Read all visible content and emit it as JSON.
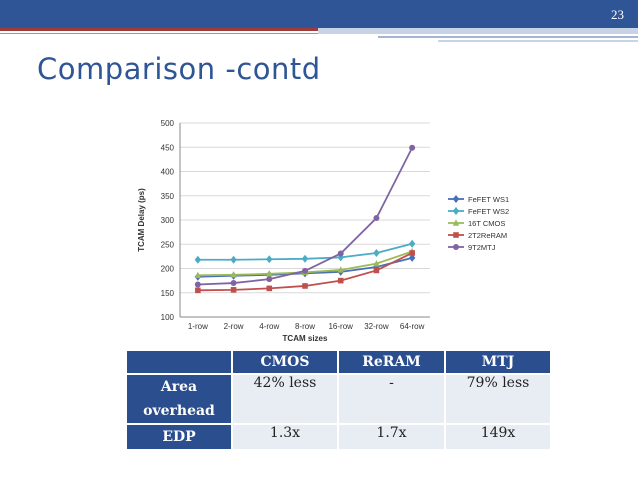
{
  "slide": {
    "page_number": "23",
    "title": "Comparison -contd"
  },
  "chart_data": {
    "type": "line",
    "title": "",
    "xlabel": "TCAM sizes",
    "ylabel": "TCAM Delay (ps)",
    "categories": [
      "1-row",
      "2-row",
      "4-row",
      "8-row",
      "16-row",
      "32-row",
      "64-row"
    ],
    "ylim": [
      100,
      500
    ],
    "yticks": [
      100,
      150,
      200,
      250,
      300,
      350,
      400,
      450,
      500
    ],
    "grid": true,
    "legend_position": "right",
    "series": [
      {
        "name": "FeFET WS1",
        "color": "#4a6fb5",
        "marker": "diamond",
        "values": [
          183,
          185,
          187,
          190,
          193,
          203,
          222
        ]
      },
      {
        "name": "FeFET WS2",
        "color": "#4bacc6",
        "marker": "diamond",
        "values": [
          218,
          218,
          219,
          220,
          223,
          232,
          251
        ]
      },
      {
        "name": "16T CMOS",
        "color": "#9bbb59",
        "marker": "triangle",
        "values": [
          186,
          187,
          189,
          192,
          197,
          210,
          235
        ]
      },
      {
        "name": "2T2ReRAM",
        "color": "#c0504d",
        "marker": "square",
        "values": [
          155,
          156,
          159,
          164,
          175,
          196,
          232
        ]
      },
      {
        "name": "9T2MTJ",
        "color": "#8064a2",
        "marker": "circle",
        "values": [
          167,
          170,
          178,
          195,
          231,
          304,
          449
        ]
      }
    ]
  },
  "table": {
    "headers": [
      "",
      "CMOS",
      "ReRAM",
      "MTJ"
    ],
    "rows": [
      {
        "label_line1": "Area",
        "label_line2": "overhead",
        "cmos": "42% less",
        "reram": "-",
        "mtj": "79% less"
      },
      {
        "label_line1": "EDP",
        "cmos": "1.3x",
        "reram": "1.7x",
        "mtj": "149x"
      }
    ]
  }
}
